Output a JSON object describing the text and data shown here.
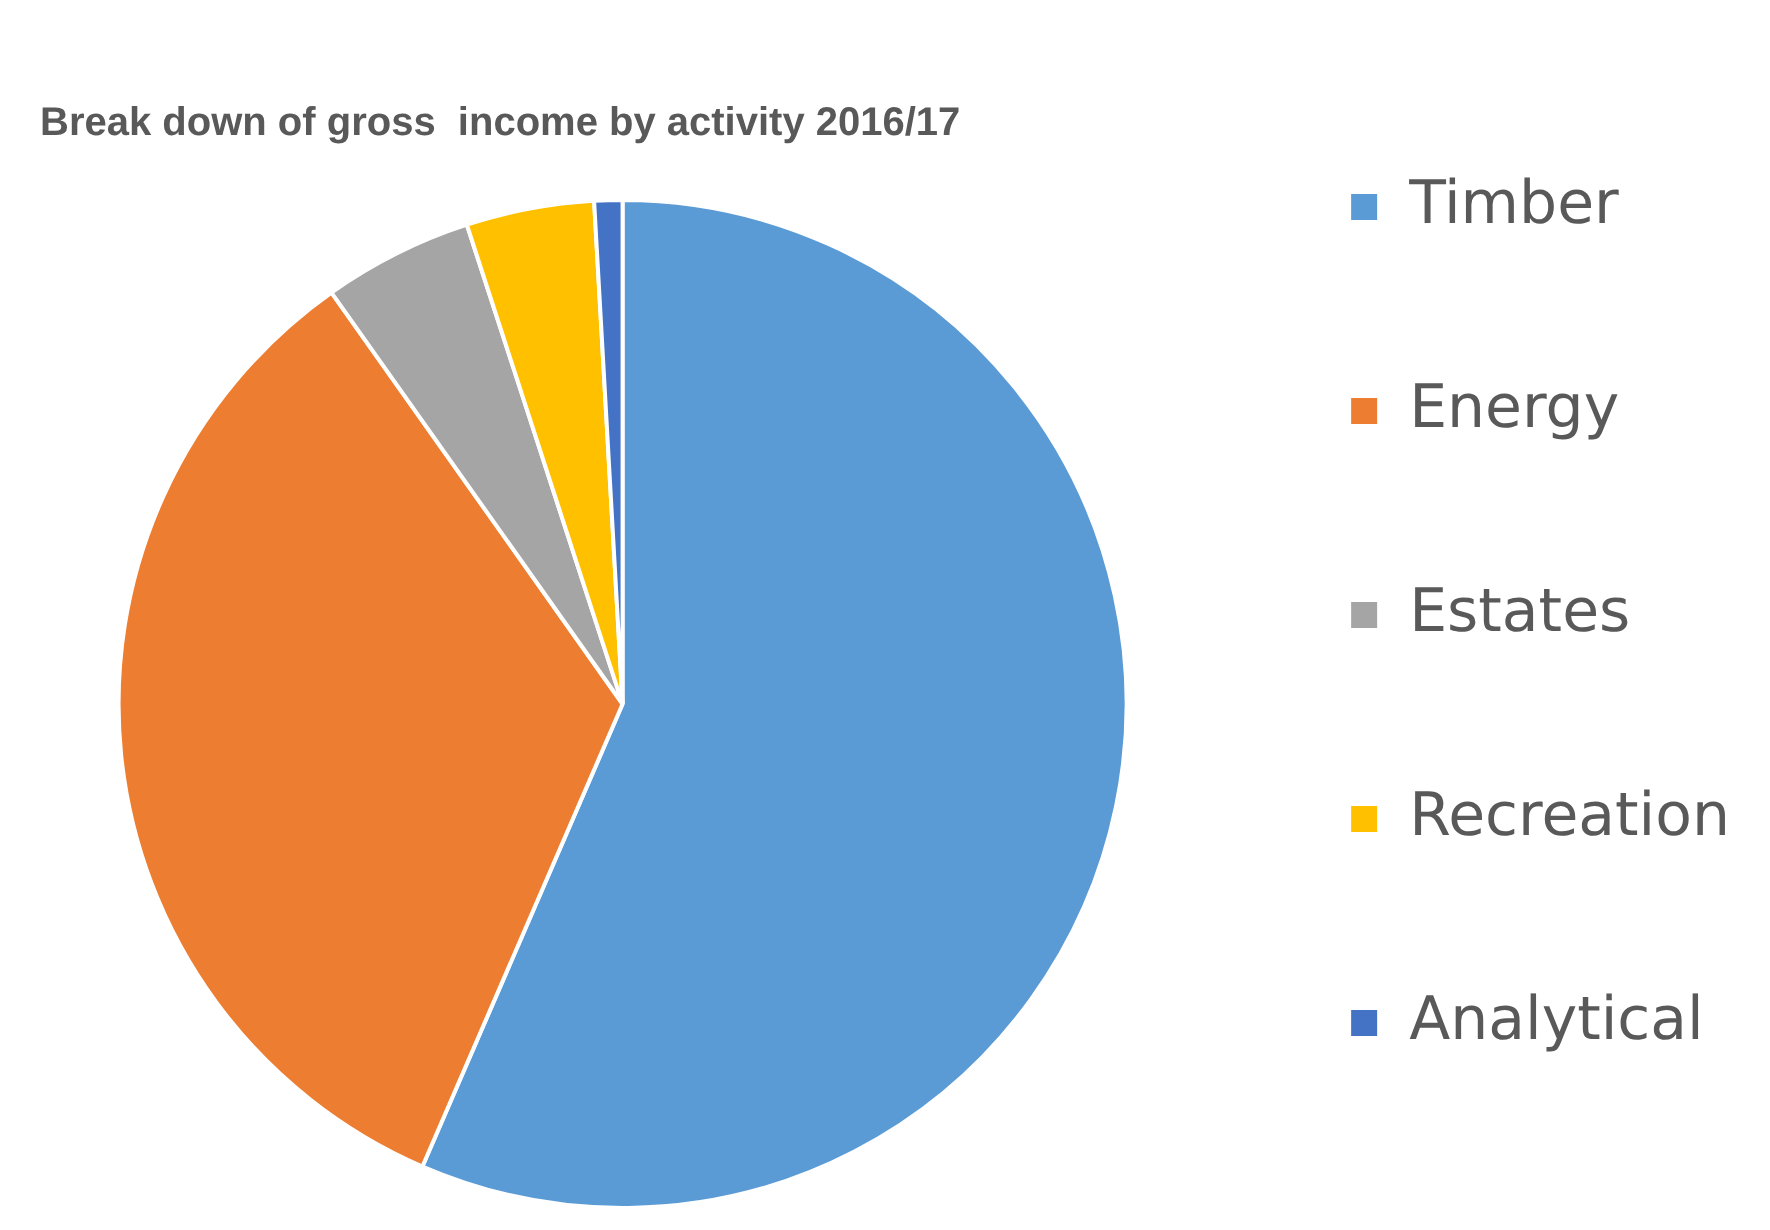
{
  "chart_data": {
    "type": "pie",
    "title": "Break down of gross  income by activity 2016/17",
    "categories": [
      "Timber",
      "Energy",
      "Estates",
      "Recreation",
      "Analytical"
    ],
    "values": [
      56.5,
      33.7,
      4.8,
      4.1,
      0.9
    ],
    "colors": [
      "#5b9bd5",
      "#ed7d31",
      "#a5a5a5",
      "#ffc000",
      "#4472c4"
    ],
    "legend": "right"
  }
}
